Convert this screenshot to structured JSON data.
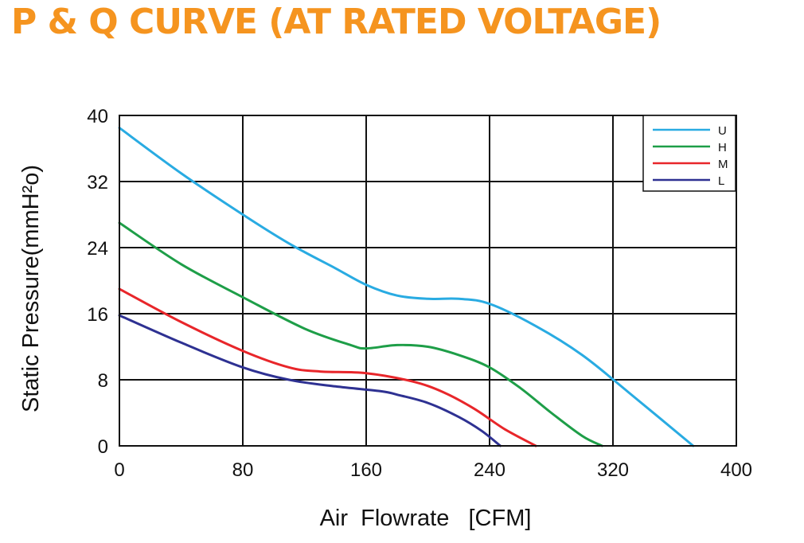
{
  "title": "P & Q CURVE (AT RATED VOLTAGE)",
  "chart_data": {
    "type": "line",
    "xlabel": "Air  Flowrate   [CFM]",
    "ylabel": "Static Pressure(mmH²o)",
    "xlim": [
      0,
      400
    ],
    "ylim": [
      0,
      40
    ],
    "xticks": [
      0,
      80,
      160,
      240,
      320,
      400
    ],
    "yticks": [
      0,
      8,
      16,
      24,
      32,
      40
    ],
    "xtick_labels": [
      "0",
      "80",
      "160",
      "240",
      "320",
      "400"
    ],
    "ytick_labels": [
      "0",
      "8",
      "16",
      "24",
      "32",
      "40"
    ],
    "grid": true,
    "legend_position": "top-right",
    "series": [
      {
        "name": "U",
        "color": "#29abe2",
        "x": [
          0,
          40,
          80,
          110,
          140,
          160,
          180,
          200,
          220,
          240,
          270,
          300,
          330,
          372
        ],
        "y": [
          38.5,
          33,
          28,
          24.5,
          21.5,
          19.5,
          18.2,
          17.8,
          17.8,
          17.2,
          14.5,
          11,
          6.5,
          0
        ]
      },
      {
        "name": "H",
        "color": "#1e9e48",
        "x": [
          0,
          40,
          80,
          120,
          150,
          160,
          180,
          200,
          220,
          240,
          260,
          280,
          300,
          313
        ],
        "y": [
          27,
          22,
          18,
          14.2,
          12.2,
          11.8,
          12.2,
          12,
          11,
          9.5,
          7,
          4,
          1.2,
          0
        ]
      },
      {
        "name": "M",
        "color": "#e8262a",
        "x": [
          0,
          40,
          80,
          110,
          130,
          160,
          190,
          210,
          230,
          250,
          270
        ],
        "y": [
          19,
          15,
          11.5,
          9.5,
          9,
          8.8,
          7.8,
          6.5,
          4.5,
          2,
          0
        ]
      },
      {
        "name": "L",
        "color": "#2e3192",
        "x": [
          0,
          40,
          80,
          110,
          140,
          170,
          180,
          200,
          220,
          235,
          247
        ],
        "y": [
          15.8,
          12.5,
          9.5,
          8,
          7.2,
          6.6,
          6.2,
          5.2,
          3.5,
          1.8,
          0
        ]
      }
    ]
  }
}
